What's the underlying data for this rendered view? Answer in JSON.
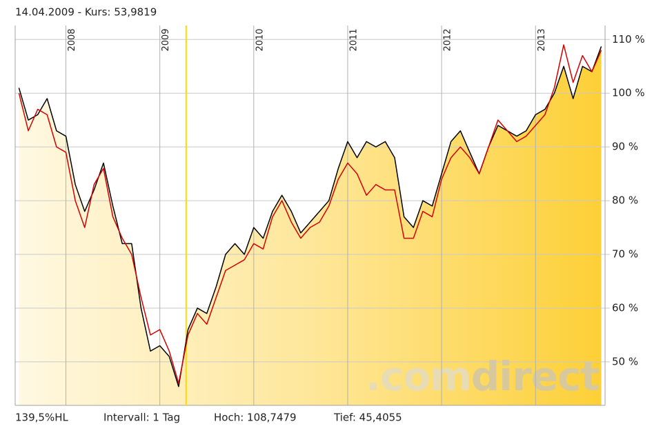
{
  "chart_data": {
    "type": "line",
    "header": "14.04.2009  -  Kurs: 53,9819",
    "footer": [
      "139,5%HL",
      "Intervall: 1 Tag",
      "Hoch: 108,7479",
      "Tief: 45,4055"
    ],
    "watermark": [
      ".com",
      "direct"
    ],
    "cursor_x": 2009.28,
    "x": [
      2007.5,
      2007.6,
      2007.7,
      2007.8,
      2007.9,
      2008.0,
      2008.1,
      2008.2,
      2008.3,
      2008.4,
      2008.5,
      2008.6,
      2008.7,
      2008.8,
      2008.9,
      2009.0,
      2009.1,
      2009.2,
      2009.3,
      2009.4,
      2009.5,
      2009.6,
      2009.7,
      2009.8,
      2009.9,
      2010.0,
      2010.1,
      2010.2,
      2010.3,
      2010.4,
      2010.5,
      2010.6,
      2010.7,
      2010.8,
      2010.9,
      2011.0,
      2011.1,
      2011.2,
      2011.3,
      2011.4,
      2011.5,
      2011.6,
      2011.7,
      2011.8,
      2011.9,
      2012.0,
      2012.1,
      2012.2,
      2012.3,
      2012.4,
      2012.5,
      2012.6,
      2012.7,
      2012.8,
      2012.9,
      2013.0,
      2013.1,
      2013.2,
      2013.3,
      2013.4,
      2013.5,
      2013.6,
      2013.7
    ],
    "series": [
      {
        "color": "#000000",
        "fill": true,
        "values": [
          101,
          95,
          96,
          99,
          93,
          92,
          83,
          78,
          82,
          87,
          79,
          72,
          72,
          60,
          52,
          53,
          51,
          45.4,
          56,
          60,
          59,
          64,
          70,
          72,
          70,
          75,
          73,
          78,
          81,
          78,
          74,
          76,
          78,
          80,
          86,
          91,
          88,
          91,
          90,
          91,
          88,
          77,
          75,
          80,
          79,
          85,
          91,
          93,
          89,
          85,
          90,
          94,
          93,
          92,
          93,
          96,
          97,
          100,
          105,
          99,
          105,
          104,
          108.7
        ]
      },
      {
        "color": "#d40000",
        "values": [
          100,
          93,
          97,
          96,
          90,
          89,
          80,
          75,
          83,
          86,
          77,
          73,
          70,
          62,
          55,
          56,
          52,
          46,
          55,
          59,
          57,
          62,
          67,
          68,
          69,
          72,
          71,
          77,
          80,
          76,
          73,
          75,
          76,
          79,
          84,
          87,
          85,
          81,
          83,
          82,
          82,
          73,
          73,
          78,
          77,
          84,
          88,
          90,
          88,
          85,
          90,
          95,
          93,
          91,
          92,
          94,
          96,
          101,
          109,
          102,
          107,
          104,
          108
        ]
      }
    ],
    "xlim": [
      2007.46,
      2013.74
    ],
    "xticks": [
      2008,
      2009,
      2010,
      2011,
      2012,
      2013
    ],
    "ylim": [
      41.9,
      112.6
    ],
    "yticks": [
      {
        "value": 50,
        "label": "50 %"
      },
      {
        "value": 60,
        "label": "60 %"
      },
      {
        "value": 70,
        "label": "70 %"
      },
      {
        "value": 80,
        "label": "80 %"
      },
      {
        "value": 90,
        "label": "90 %"
      },
      {
        "value": 100,
        "label": "100 %"
      },
      {
        "value": 110,
        "label": "110 %"
      }
    ],
    "grid": true
  }
}
